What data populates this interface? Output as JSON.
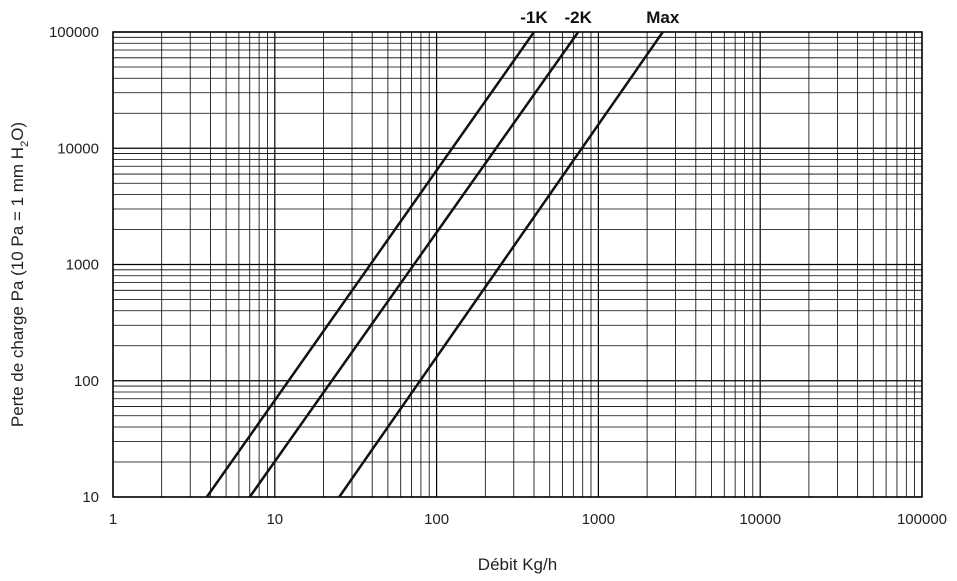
{
  "chart_data": {
    "type": "line",
    "xscale": "log",
    "yscale": "log",
    "xlim": [
      1,
      100000
    ],
    "ylim": [
      10,
      100000
    ],
    "grid": true,
    "xlabel": "Débit Kg/h",
    "ylabel": {
      "before": "Perte de charge Pa (10 Pa = 1 mm H",
      "sub1": "2",
      "after": "O)"
    },
    "xticks": [
      {
        "value": 1,
        "label": "1"
      },
      {
        "value": 10,
        "label": "10"
      },
      {
        "value": 100,
        "label": "100"
      },
      {
        "value": 1000,
        "label": "1000"
      },
      {
        "value": 10000,
        "label": "10000"
      },
      {
        "value": 100000,
        "label": "100000"
      }
    ],
    "yticks": [
      {
        "value": 10,
        "label": "10"
      },
      {
        "value": 100,
        "label": "100"
      },
      {
        "value": 1000,
        "label": "1000"
      },
      {
        "value": 10000,
        "label": "10000"
      },
      {
        "value": 100000,
        "label": "100000"
      }
    ],
    "series": [
      {
        "name": "-1K",
        "color": "#111111",
        "points": [
          [
            3.8,
            10
          ],
          [
            400,
            100000
          ]
        ]
      },
      {
        "name": "-2K",
        "color": "#111111",
        "points": [
          [
            7,
            10
          ],
          [
            750,
            100000
          ]
        ]
      },
      {
        "name": "Max",
        "color": "#111111",
        "points": [
          [
            25,
            10
          ],
          [
            2500,
            100000
          ]
        ]
      }
    ]
  }
}
